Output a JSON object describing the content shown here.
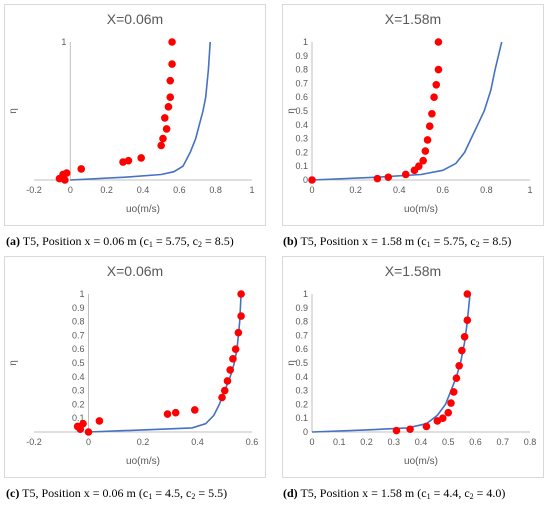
{
  "colors": {
    "line": "#4472c4",
    "marker": "#ff0000",
    "axis": "#bfbfbf",
    "text": "#595959"
  },
  "chart_data": [
    {
      "type": "scatter",
      "title": "X=0.06m",
      "xlabel": "uo(m/s)",
      "ylabel": "η",
      "xlim": [
        -0.2,
        1
      ],
      "ylim": [
        0,
        1
      ],
      "xticks": [
        "-0.2",
        "0",
        "0.2",
        "0.4",
        "0.6",
        "0.8",
        "1"
      ],
      "yticks": [
        "1"
      ],
      "grid": false,
      "series": [
        {
          "kind": "line",
          "x": [
            0,
            0.3,
            0.5,
            0.57,
            0.62,
            0.66,
            0.69,
            0.71,
            0.73,
            0.745,
            0.76,
            0.77
          ],
          "y": [
            0,
            0.02,
            0.04,
            0.06,
            0.1,
            0.2,
            0.3,
            0.4,
            0.5,
            0.6,
            0.8,
            1.0
          ]
        },
        {
          "kind": "points",
          "x": [
            -0.06,
            -0.04,
            -0.02,
            -0.03,
            0.06,
            0.29,
            0.32,
            0.39,
            0.5,
            0.51,
            0.53,
            0.52,
            0.54,
            0.55,
            0.55,
            0.56,
            0.56
          ],
          "y": [
            0.01,
            0.04,
            0.05,
            0.0,
            0.08,
            0.13,
            0.14,
            0.16,
            0.25,
            0.3,
            0.37,
            0.45,
            0.53,
            0.6,
            0.72,
            0.84,
            1.0
          ]
        }
      ],
      "caption": {
        "label": "(a)",
        "text": " T5, Position x = 0.06 m (c",
        "c1": "1",
        "mid": " = 5.75, c",
        "c2": "2",
        "end": " = 8.5)"
      }
    },
    {
      "type": "scatter",
      "title": "X=1.58m",
      "xlabel": "uo(m/s)",
      "ylabel": "η",
      "xlim": [
        0,
        1
      ],
      "ylim": [
        0,
        1
      ],
      "xticks": [
        "0",
        "0.2",
        "0.4",
        "0.6",
        "0.8",
        "1"
      ],
      "yticks": [
        "0",
        "0.1",
        "0.2",
        "0.3",
        "0.4",
        "0.5",
        "0.6",
        "0.7",
        "0.8",
        "0.9",
        "1"
      ],
      "grid": false,
      "series": [
        {
          "kind": "line",
          "x": [
            0,
            0.3,
            0.5,
            0.6,
            0.66,
            0.7,
            0.73,
            0.76,
            0.79,
            0.82,
            0.84,
            0.87
          ],
          "y": [
            0,
            0.02,
            0.04,
            0.07,
            0.12,
            0.2,
            0.3,
            0.4,
            0.5,
            0.65,
            0.8,
            1.0
          ]
        },
        {
          "kind": "points",
          "x": [
            0,
            0.3,
            0.35,
            0.43,
            0.47,
            0.49,
            0.51,
            0.52,
            0.53,
            0.54,
            0.55,
            0.56,
            0.57,
            0.58,
            0.58
          ],
          "y": [
            0,
            0.01,
            0.02,
            0.04,
            0.07,
            0.1,
            0.14,
            0.21,
            0.29,
            0.39,
            0.48,
            0.6,
            0.69,
            0.8,
            1.0
          ]
        }
      ],
      "caption": {
        "label": "(b)",
        "text": " T5, Position x = 1.58 m (c",
        "c1": "1",
        "mid": " = 5.75, c",
        "c2": "2",
        "end": " = 8.5)"
      }
    },
    {
      "type": "scatter",
      "title": "X=0.06m",
      "xlabel": "uo(m/s)",
      "ylabel": "η",
      "xlim": [
        -0.2,
        0.6
      ],
      "ylim": [
        0,
        1
      ],
      "xticks": [
        "-0.2",
        "0",
        "0.2",
        "0.4",
        "0.6"
      ],
      "yticks": [
        "0.1",
        "0.2",
        "0.3",
        "0.4",
        "0.5",
        "0.6",
        "0.7",
        "0.8",
        "0.9",
        "1"
      ],
      "grid": false,
      "series": [
        {
          "kind": "line",
          "x": [
            0,
            0.2,
            0.38,
            0.43,
            0.46,
            0.48,
            0.5,
            0.52,
            0.535,
            0.545,
            0.555,
            0.56
          ],
          "y": [
            0,
            0.015,
            0.03,
            0.06,
            0.12,
            0.2,
            0.3,
            0.4,
            0.5,
            0.6,
            0.8,
            1.0
          ]
        },
        {
          "kind": "points",
          "x": [
            -0.04,
            -0.03,
            -0.02,
            0.0,
            0.04,
            0.29,
            0.32,
            0.39,
            0.49,
            0.5,
            0.51,
            0.52,
            0.53,
            0.54,
            0.55,
            0.56,
            0.56
          ],
          "y": [
            0.04,
            0.02,
            0.06,
            0.0,
            0.08,
            0.13,
            0.14,
            0.16,
            0.25,
            0.3,
            0.37,
            0.45,
            0.53,
            0.6,
            0.72,
            0.84,
            1.0
          ]
        }
      ],
      "caption": {
        "label": "(c)",
        "text": " T5, Position x = 0.06 m (c",
        "c1": "1",
        "mid": " = 4.5, c",
        "c2": "2",
        "end": " = 5.5)"
      }
    },
    {
      "type": "scatter",
      "title": "X=1.58m",
      "xlabel": "uo(m/s)",
      "ylabel": "η",
      "xlim": [
        0,
        0.8
      ],
      "ylim": [
        0,
        1
      ],
      "xticks": [
        "0",
        "0.1",
        "0.2",
        "0.3",
        "0.4",
        "0.5",
        "0.6",
        "0.7",
        "0.8"
      ],
      "yticks": [
        "0",
        "0.1",
        "0.2",
        "0.3",
        "0.4",
        "0.5",
        "0.6",
        "0.7",
        "0.8",
        "0.9",
        "1"
      ],
      "grid": false,
      "series": [
        {
          "kind": "line",
          "x": [
            0,
            0.2,
            0.35,
            0.42,
            0.46,
            0.49,
            0.51,
            0.53,
            0.545,
            0.56,
            0.57,
            0.58
          ],
          "y": [
            0,
            0.015,
            0.03,
            0.06,
            0.12,
            0.2,
            0.3,
            0.4,
            0.5,
            0.65,
            0.8,
            1.0
          ]
        },
        {
          "kind": "points",
          "x": [
            0.31,
            0.36,
            0.42,
            0.46,
            0.48,
            0.5,
            0.51,
            0.52,
            0.53,
            0.54,
            0.55,
            0.56,
            0.57,
            0.57
          ],
          "y": [
            0.01,
            0.02,
            0.04,
            0.08,
            0.1,
            0.14,
            0.21,
            0.29,
            0.39,
            0.48,
            0.59,
            0.69,
            0.81,
            1.0
          ]
        }
      ],
      "caption": {
        "label": "(d)",
        "text": " T5, Position x = 1.58 m (c",
        "c1": "1",
        "mid": " = 4.4, c",
        "c2": "2",
        "end": " = 4.0)"
      }
    }
  ]
}
